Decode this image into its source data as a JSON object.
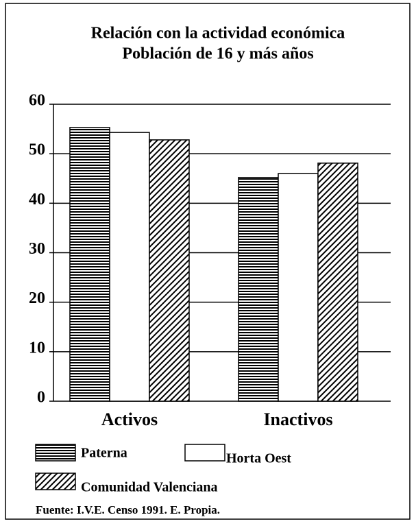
{
  "chart_data": {
    "type": "bar",
    "title": [
      "Relación con la actividad económica",
      "Población de 16 y más años"
    ],
    "categories": [
      "Activos",
      "Inactivos"
    ],
    "series": [
      {
        "name": "Paterna",
        "color": "#000000",
        "pattern": "horizontal",
        "values": [
          55.3,
          45.2
        ]
      },
      {
        "name": "Horta Oest",
        "color": "#ffffff",
        "pattern": "none",
        "values": [
          54.3,
          46.0
        ]
      },
      {
        "name": "Comunidad Valenciana",
        "color": "#000000",
        "pattern": "diagonal",
        "values": [
          52.8,
          48.1
        ]
      }
    ],
    "ylim": [
      0,
      60
    ],
    "yticks": [
      0,
      10,
      20,
      30,
      40,
      50,
      60
    ],
    "grid": true,
    "source": "Fuente: I.V.E. Censo 1991. E. Propia."
  }
}
